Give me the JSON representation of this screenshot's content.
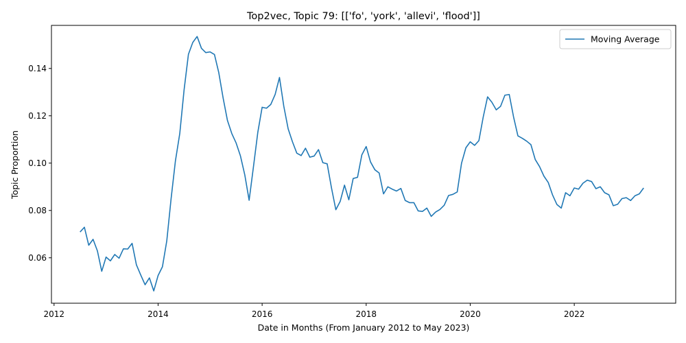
{
  "chart_data": {
    "type": "line",
    "title": "Top2vec, Topic 79: [['fo', 'york', 'allevi', 'flood']]",
    "xlabel": "Date in Months (From January 2012 to May 2023)",
    "ylabel": "Topic Proportion",
    "xlim": [
      2011.95,
      2023.95
    ],
    "ylim": [
      0.0408,
      0.1582
    ],
    "x_ticks": [
      2012,
      2014,
      2016,
      2018,
      2020,
      2022
    ],
    "x_tick_labels": [
      "2012",
      "2014",
      "2016",
      "2018",
      "2020",
      "2022"
    ],
    "y_ticks": [
      0.06,
      0.08,
      0.1,
      0.12,
      0.14
    ],
    "y_tick_labels": [
      "0.06",
      "0.08",
      "0.10",
      "0.12",
      "0.14"
    ],
    "grid": false,
    "legend_position": "top-right",
    "series": [
      {
        "name": "Moving Average",
        "color": "#1f77b4",
        "x": [
          "2012-07",
          "2012-08",
          "2012-09",
          "2012-10",
          "2012-11",
          "2012-12",
          "2013-01",
          "2013-02",
          "2013-03",
          "2013-04",
          "2013-05",
          "2013-06",
          "2013-07",
          "2013-08",
          "2013-09",
          "2013-10",
          "2013-11",
          "2013-12",
          "2014-01",
          "2014-02",
          "2014-03",
          "2014-04",
          "2014-05",
          "2014-06",
          "2014-07",
          "2014-08",
          "2014-09",
          "2014-10",
          "2014-11",
          "2014-12",
          "2015-01",
          "2015-02",
          "2015-03",
          "2015-04",
          "2015-05",
          "2015-06",
          "2015-07",
          "2015-08",
          "2015-09",
          "2015-10",
          "2015-11",
          "2015-12",
          "2016-01",
          "2016-02",
          "2016-03",
          "2016-04",
          "2016-05",
          "2016-06",
          "2016-07",
          "2016-08",
          "2016-09",
          "2016-10",
          "2016-11",
          "2016-12",
          "2017-01",
          "2017-02",
          "2017-03",
          "2017-04",
          "2017-05",
          "2017-06",
          "2017-07",
          "2017-08",
          "2017-09",
          "2017-10",
          "2017-11",
          "2017-12",
          "2018-01",
          "2018-02",
          "2018-03",
          "2018-04",
          "2018-05",
          "2018-06",
          "2018-07",
          "2018-08",
          "2018-09",
          "2018-10",
          "2018-11",
          "2018-12",
          "2019-01",
          "2019-02",
          "2019-03",
          "2019-04",
          "2019-05",
          "2019-06",
          "2019-07",
          "2019-08",
          "2019-09",
          "2019-10",
          "2019-11",
          "2019-12",
          "2020-01",
          "2020-02",
          "2020-03",
          "2020-04",
          "2020-05",
          "2020-06",
          "2020-07",
          "2020-08",
          "2020-09",
          "2020-10",
          "2020-11",
          "2020-12",
          "2021-01",
          "2021-02",
          "2021-03",
          "2021-04",
          "2021-05",
          "2021-06",
          "2021-07",
          "2021-08",
          "2021-09",
          "2021-10",
          "2021-11",
          "2021-12",
          "2022-01",
          "2022-02",
          "2022-03",
          "2022-04",
          "2022-05",
          "2022-06",
          "2022-07",
          "2022-08",
          "2022-09",
          "2022-10",
          "2022-11",
          "2022-12",
          "2023-01",
          "2023-02",
          "2023-03",
          "2023-04",
          "2023-05"
        ],
        "values": [
          0.0709,
          0.0729,
          0.0653,
          0.0678,
          0.0629,
          0.0543,
          0.0603,
          0.0587,
          0.0614,
          0.0598,
          0.0638,
          0.0637,
          0.0661,
          0.057,
          0.0527,
          0.0486,
          0.0515,
          0.046,
          0.0525,
          0.0562,
          0.0671,
          0.085,
          0.101,
          0.1125,
          0.131,
          0.146,
          0.151,
          0.1535,
          0.1485,
          0.1467,
          0.147,
          0.1459,
          0.1382,
          0.1275,
          0.118,
          0.1125,
          0.1085,
          0.103,
          0.095,
          0.0843,
          0.0985,
          0.113,
          0.1236,
          0.1232,
          0.1248,
          0.129,
          0.1362,
          0.124,
          0.1145,
          0.109,
          0.1042,
          0.1032,
          0.1063,
          0.1025,
          0.103,
          0.1057,
          0.1002,
          0.0997,
          0.0895,
          0.0803,
          0.0838,
          0.0907,
          0.0845,
          0.0935,
          0.094,
          0.1035,
          0.107,
          0.1005,
          0.0972,
          0.0958,
          0.087,
          0.09,
          0.089,
          0.0882,
          0.0893,
          0.0842,
          0.0833,
          0.0833,
          0.0798,
          0.0796,
          0.081,
          0.0775,
          0.0793,
          0.0804,
          0.0822,
          0.0863,
          0.0868,
          0.0878,
          0.1,
          0.1065,
          0.109,
          0.1075,
          0.1095,
          0.1195,
          0.128,
          0.1257,
          0.1225,
          0.124,
          0.1287,
          0.129,
          0.1195,
          0.1115,
          0.1105,
          0.1093,
          0.1078,
          0.1015,
          0.0985,
          0.0945,
          0.0918,
          0.0865,
          0.0825,
          0.081,
          0.0875,
          0.0862,
          0.0895,
          0.089,
          0.0915,
          0.0928,
          0.0922,
          0.0892,
          0.09,
          0.0875,
          0.0866,
          0.082,
          0.0826,
          0.085,
          0.0854,
          0.0842,
          0.0862,
          0.087,
          0.0895
        ]
      }
    ]
  }
}
